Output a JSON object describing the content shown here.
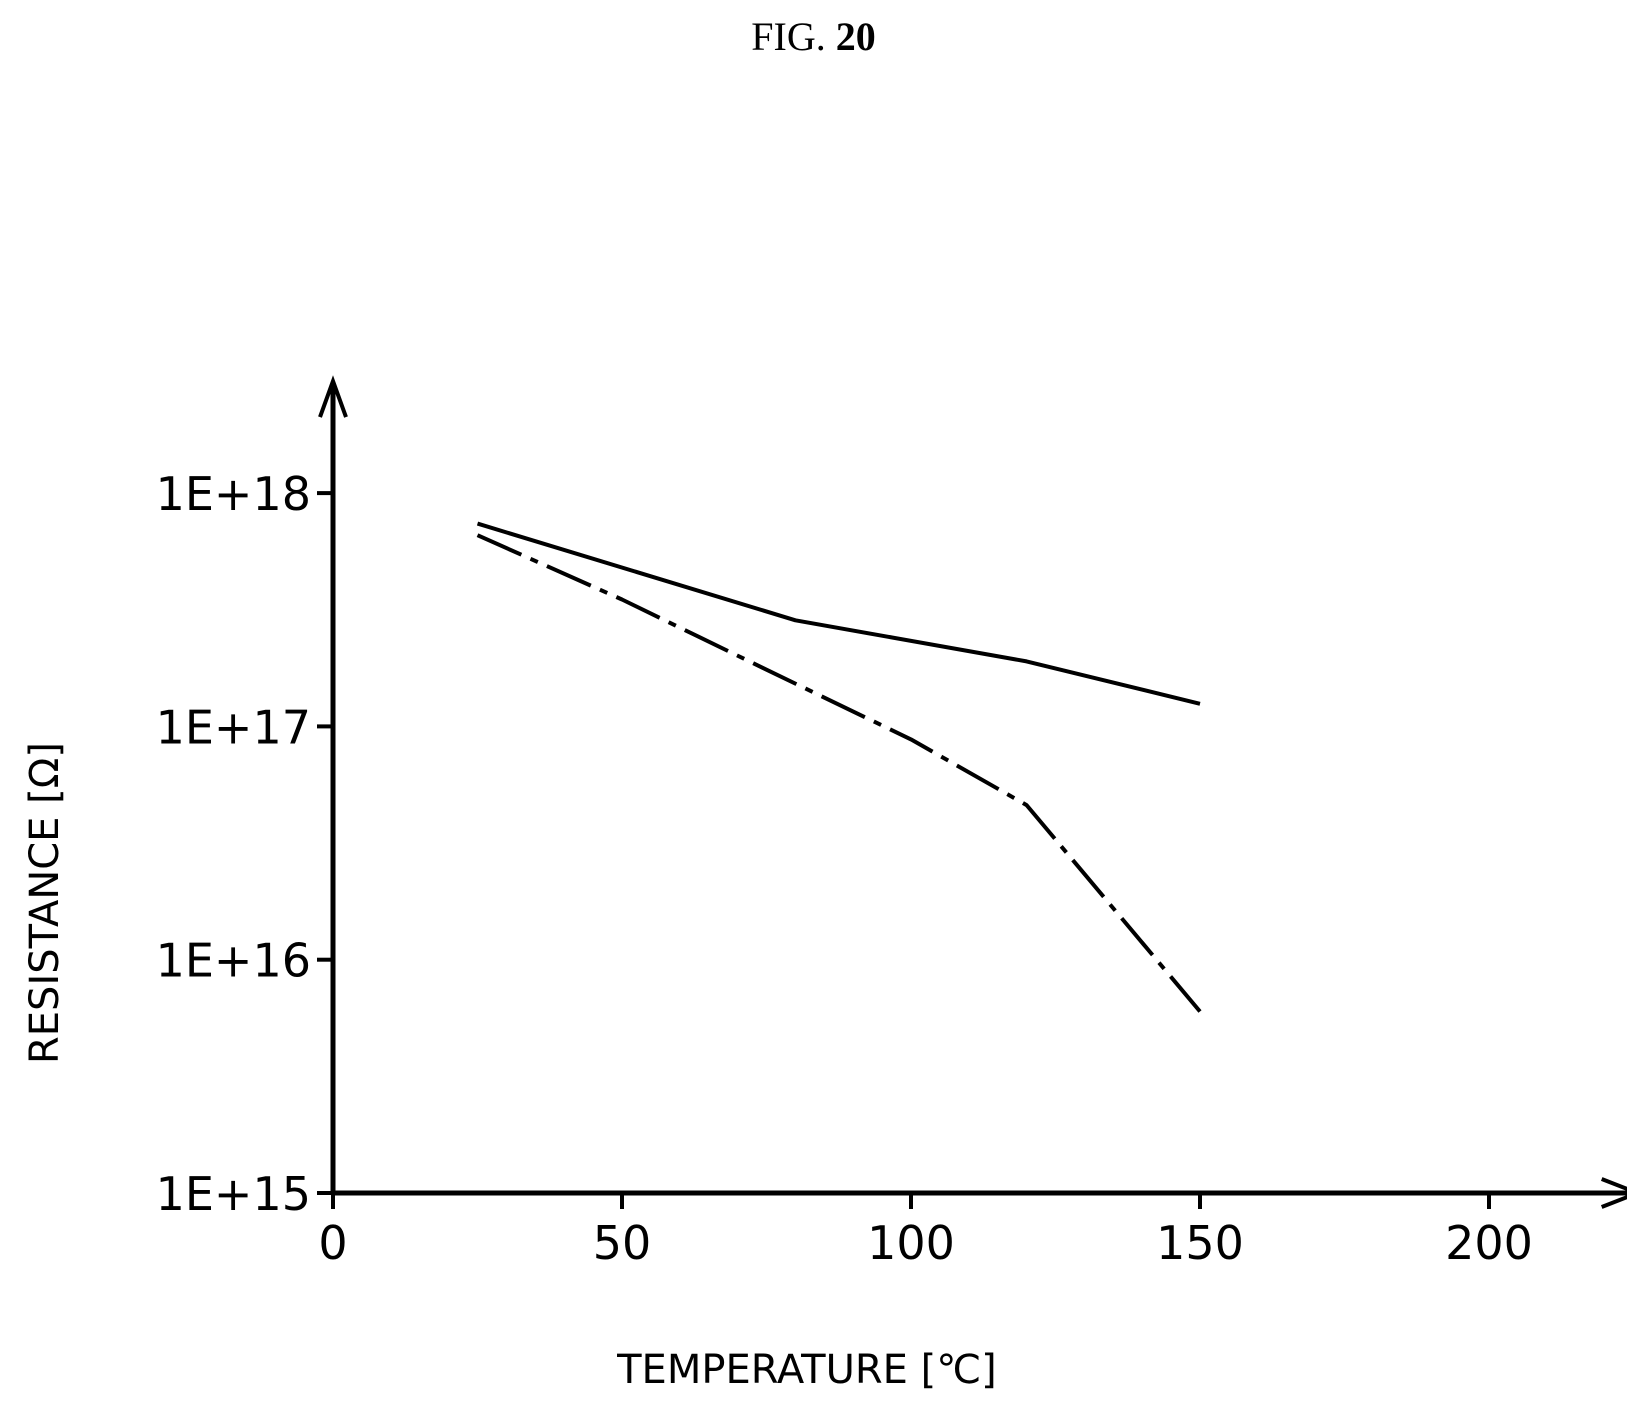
{
  "figure": {
    "prefix": "FIG.",
    "number": "20"
  },
  "chart_data": {
    "type": "line",
    "title": "",
    "xlabel": "TEMPERATURE [℃]",
    "ylabel": "RESISTANCE [Ω]",
    "xlim": [
      0,
      215
    ],
    "ylim": [
      1000000000000000.0,
      1e+18
    ],
    "yscale": "log",
    "xticks": [
      0,
      50,
      100,
      150,
      200
    ],
    "xtick_labels": [
      "0",
      "50",
      "100",
      "150",
      "200"
    ],
    "yticks": [
      1000000000000000.0,
      1e+16,
      1e+17,
      1e+18
    ],
    "ytick_labels": [
      "1E+15",
      "1E+16",
      "1E+17",
      "1E+18"
    ],
    "grid": false,
    "legend": "none",
    "series": [
      {
        "line_style": "solid",
        "color": "#000000",
        "points": [
          [
            25,
            7.4e+17
          ],
          [
            80,
            2.85e+17
          ],
          [
            120,
            1.9e+17
          ],
          [
            150,
            1.25e+17
          ]
        ]
      },
      {
        "line_style": "dash-dot",
        "color": "#000000",
        "points": [
          [
            25,
            6.6e+17
          ],
          [
            50,
            3.5e+17
          ],
          [
            75,
            1.75e+17
          ],
          [
            100,
            8.8e+16
          ],
          [
            120,
            4.6e+16
          ],
          [
            150,
            6000000000000000.0
          ]
        ]
      }
    ]
  }
}
